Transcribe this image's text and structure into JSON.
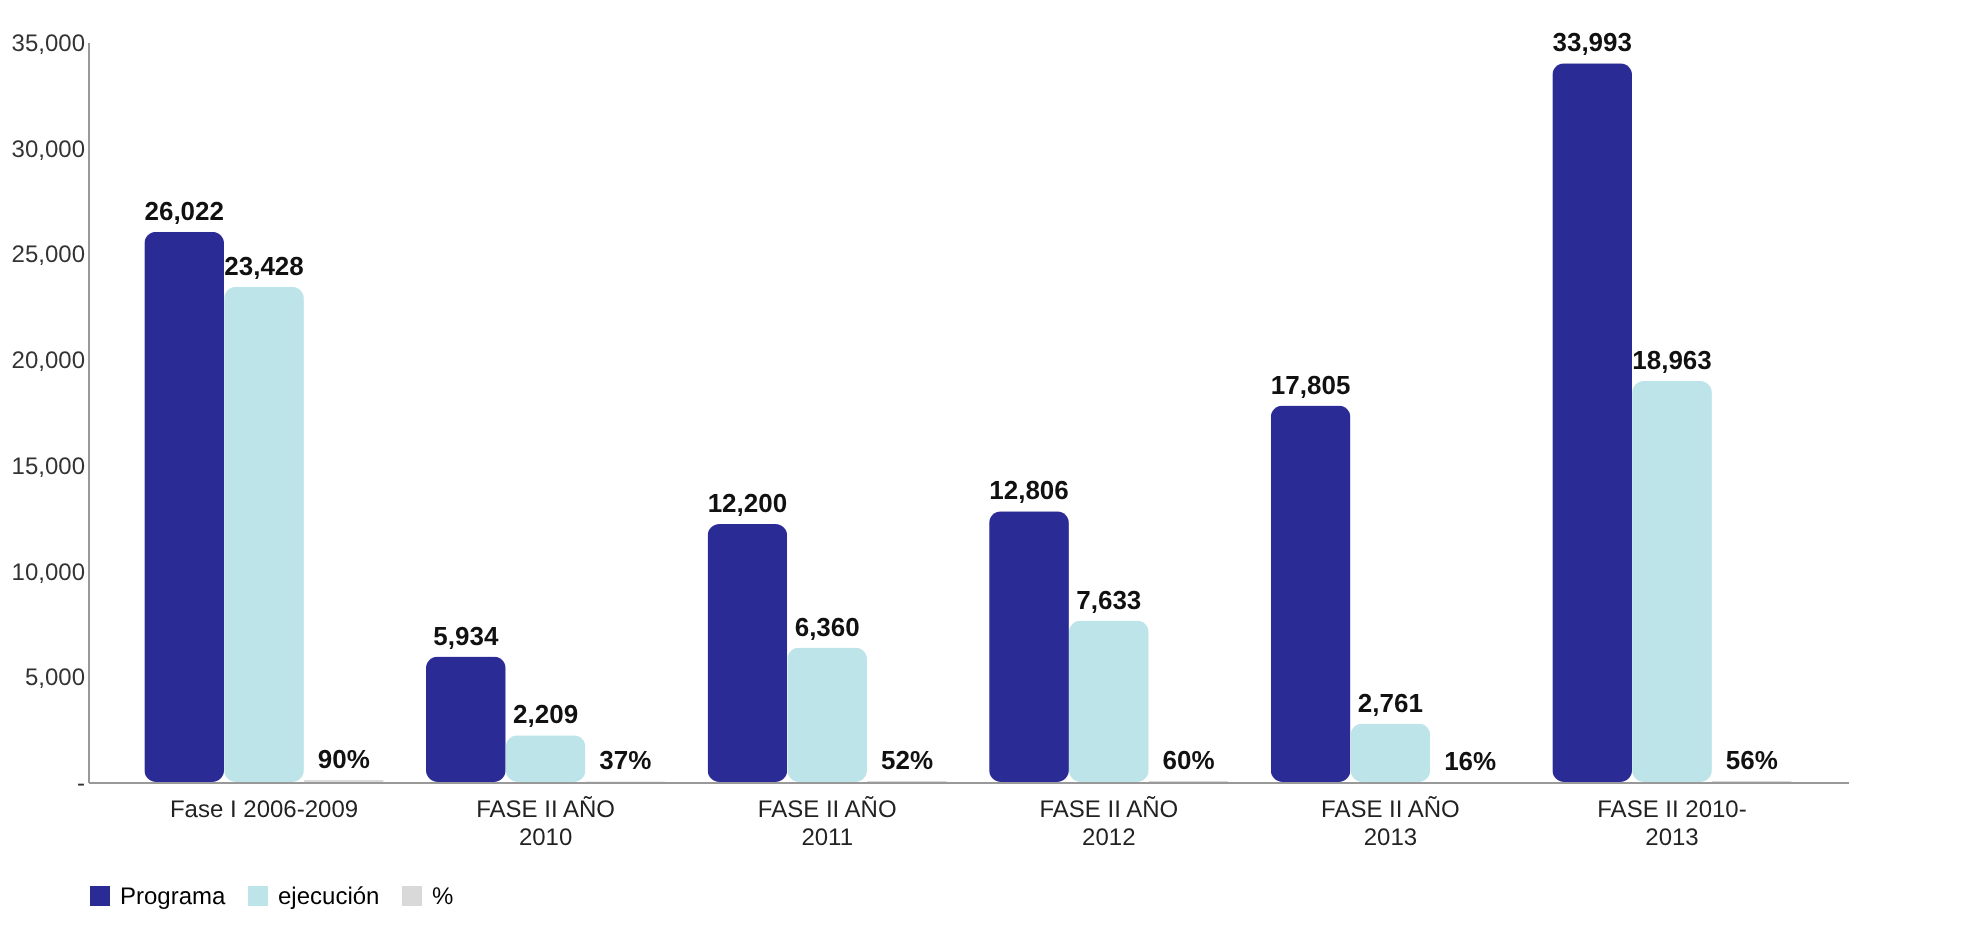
{
  "chart_data": {
    "type": "bar",
    "categories": [
      "Fase I  2006-2009",
      "FASE II  AÑO\n2010",
      "FASE II  AÑO\n2011",
      "FASE II  AÑO\n2012",
      "FASE II  AÑO\n2013",
      "FASE II  2010-\n2013"
    ],
    "series": [
      {
        "name": "Programa",
        "color": "#2b2b95",
        "values": [
          26022,
          5934,
          12200,
          12806,
          17805,
          33993
        ],
        "value_labels": [
          "26,022",
          "5,934",
          "12,200",
          "12,806",
          "17,805",
          "33,993"
        ]
      },
      {
        "name": "ejecución",
        "color": "#bde4e8",
        "values": [
          23428,
          2209,
          6360,
          7633,
          2761,
          18963
        ],
        "value_labels": [
          "23,428",
          "2,209",
          "6,360",
          "7,633",
          "2,761",
          "18,963"
        ]
      },
      {
        "name": "%",
        "color": "#d9d9d9",
        "values": [
          90,
          37,
          52,
          60,
          16,
          56
        ],
        "value_labels": [
          "90%",
          "37%",
          "52%",
          "60%",
          "16%",
          "56%"
        ]
      }
    ],
    "ylim": [
      0,
      35000
    ],
    "yticks": [
      {
        "value": 0,
        "label": "-"
      },
      {
        "value": 5000,
        "label": "5,000"
      },
      {
        "value": 10000,
        "label": "10,000"
      },
      {
        "value": 15000,
        "label": "15,000"
      },
      {
        "value": 20000,
        "label": "20,000"
      },
      {
        "value": 25000,
        "label": "25,000"
      },
      {
        "value": 30000,
        "label": "30,000"
      },
      {
        "value": 35000,
        "label": "35,000"
      }
    ],
    "grid": false,
    "legend": "bottom"
  }
}
